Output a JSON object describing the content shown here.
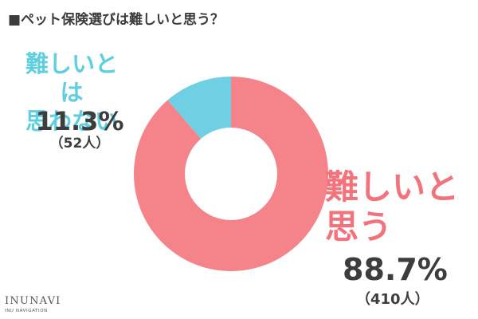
{
  "title": "■ペット保険選びは難しいと思う？",
  "chart_data": {
    "type": "pie",
    "title": "■ペット保険選びは難しいと思う？",
    "donut": true,
    "slices": [
      {
        "label": "難しいと\n思う",
        "percent": 88.7,
        "percent_text": "88.7%",
        "count": 410,
        "count_text": "（410人）",
        "color": "#f5838a"
      },
      {
        "label": "難しいとは\n思わない",
        "percent": 11.3,
        "percent_text": "11.3%",
        "count": 52,
        "count_text": "（52人）",
        "color": "#6fd0e4"
      }
    ]
  },
  "logo": {
    "main": "INUNAVI",
    "sub": "INU NAVIGATION"
  }
}
